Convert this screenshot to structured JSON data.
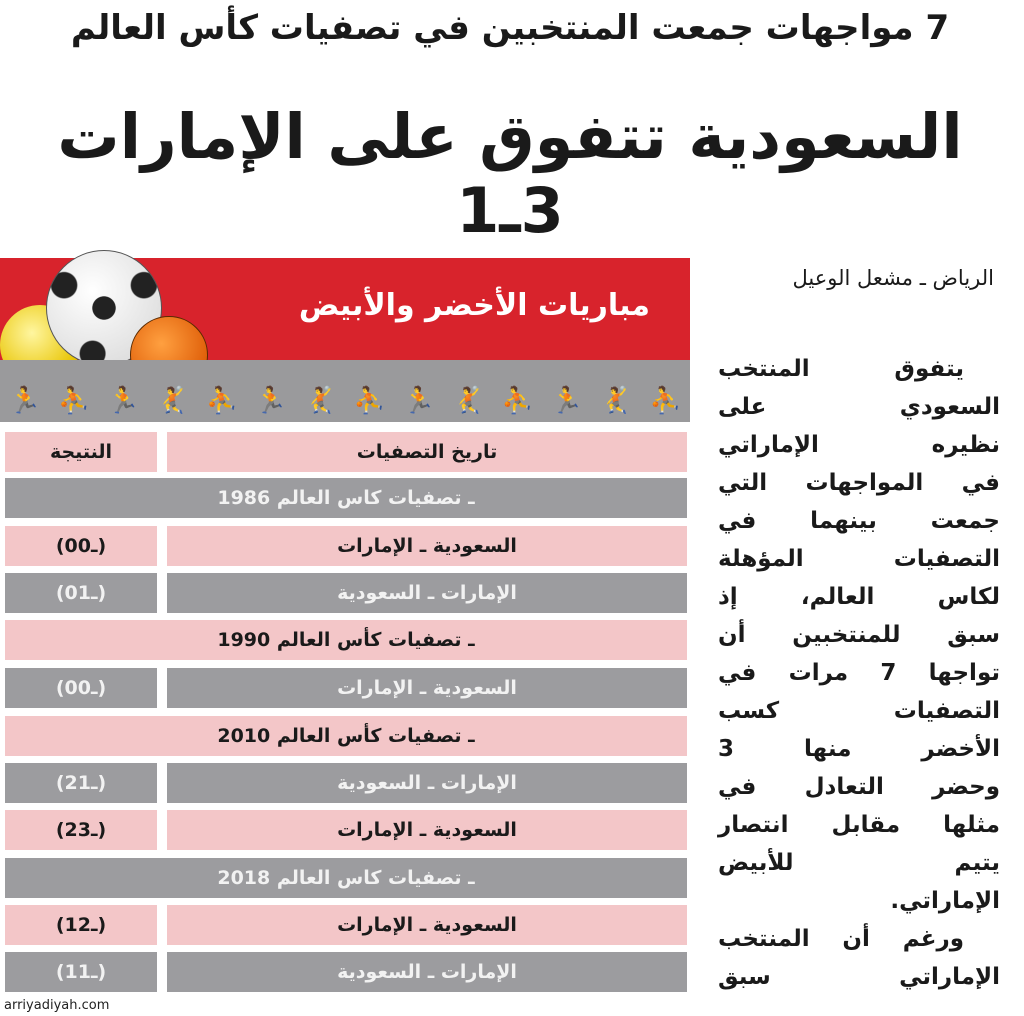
{
  "kicker": "7 مواجهات جمعت المنتخبين في تصفيات كأس العالم",
  "headline": "السعودية تتفوق على الإمارات 3ـ1",
  "box": {
    "title": "مباريات الأخضر والأبيض",
    "colors": {
      "red": "#d8232c",
      "pink": "#f3c6c8",
      "gray": "#9c9c9f"
    },
    "headers": {
      "date": "تاريخ التصفيات",
      "result": "النتيجة"
    },
    "rows": [
      {
        "type": "section",
        "text": "ـ تصفيات كاس العالم 1986",
        "tone": "gy"
      },
      {
        "type": "match",
        "match": "السعودية ـ الإمارات",
        "result": "(0ـ0)",
        "tone": "pk"
      },
      {
        "type": "match",
        "match": "الإمارات ـ السعودية",
        "result": "(0ـ1)",
        "tone": "gy"
      },
      {
        "type": "section",
        "text": "ـ تصفيات كأس العالم 1990",
        "tone": "pk"
      },
      {
        "type": "match",
        "match": "السعودية ـ الإمارات",
        "result": "(0ـ0)",
        "tone": "gy"
      },
      {
        "type": "section",
        "text": "ـ تصفيات كأس العالم 2010",
        "tone": "pk"
      },
      {
        "type": "match",
        "match": "الإمارات ـ السعودية",
        "result": "(2ـ1)",
        "tone": "gy"
      },
      {
        "type": "match",
        "match": "السعودية ـ الإمارات",
        "result": "(2ـ3)",
        "tone": "pk"
      },
      {
        "type": "section",
        "text": "ـ تصفيات كاس العالم 2018",
        "tone": "gy"
      },
      {
        "type": "match",
        "match": "السعودية ـ الإمارات",
        "result": "(1ـ2)",
        "tone": "pk"
      },
      {
        "type": "match",
        "match": "الإمارات ـ السعودية",
        "result": "(1ـ1)",
        "tone": "gy"
      }
    ]
  },
  "byline": "الرياض ـ مشعل الوعيل",
  "body_lines": [
    "يتفوق المنتخب",
    "السعودي على",
    "نظيره الإماراتي",
    "في المواجهات التي",
    "جمعت بينهما في",
    "التصفيات المؤهلة",
    "لكاس العالم، إذ",
    "سبق للمنتخبين أن",
    "تواجها 7 مرات في",
    "التصفيات كسب",
    "الأخضر منها 3",
    "وحضر التعادل في",
    "مثلها مقابل انتصار",
    "يتيم للأبيض",
    "الإماراتي.",
    "ورغم أن المنتخب",
    "الإماراتي سبق"
  ],
  "watermark": "arriyadiyah.com"
}
